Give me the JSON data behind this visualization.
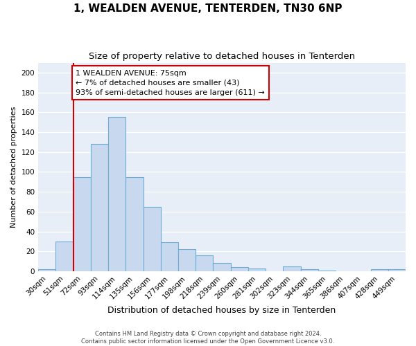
{
  "title": "1, WEALDEN AVENUE, TENTERDEN, TN30 6NP",
  "subtitle": "Size of property relative to detached houses in Tenterden",
  "xlabel": "Distribution of detached houses by size in Tenterden",
  "ylabel": "Number of detached properties",
  "footer_line1": "Contains HM Land Registry data © Crown copyright and database right 2024.",
  "footer_line2": "Contains public sector information licensed under the Open Government Licence v3.0.",
  "bin_labels": [
    "30sqm",
    "51sqm",
    "72sqm",
    "93sqm",
    "114sqm",
    "135sqm",
    "156sqm",
    "177sqm",
    "198sqm",
    "218sqm",
    "239sqm",
    "260sqm",
    "281sqm",
    "302sqm",
    "323sqm",
    "344sqm",
    "365sqm",
    "386sqm",
    "407sqm",
    "428sqm",
    "449sqm"
  ],
  "bar_values": [
    2,
    30,
    95,
    128,
    155,
    95,
    65,
    29,
    22,
    16,
    8,
    4,
    3,
    0,
    5,
    2,
    1,
    0,
    0,
    2,
    2
  ],
  "bar_color": "#c8d8ef",
  "bar_edge_color": "#6aaed6",
  "vline_color": "#cc0000",
  "vline_x_index": 1.5,
  "annotation_text": "1 WEALDEN AVENUE: 75sqm\n← 7% of detached houses are smaller (43)\n93% of semi-detached houses are larger (611) →",
  "annotation_box_facecolor": "#ffffff",
  "annotation_box_edgecolor": "#cc0000",
  "ylim": [
    0,
    210
  ],
  "yticks": [
    0,
    20,
    40,
    60,
    80,
    100,
    120,
    140,
    160,
    180,
    200
  ],
  "fig_bg_color": "#ffffff",
  "plot_bg_color": "#e8eef8",
  "grid_color": "#ffffff",
  "title_fontsize": 11,
  "subtitle_fontsize": 9.5,
  "xlabel_fontsize": 9,
  "ylabel_fontsize": 8,
  "tick_fontsize": 7.5,
  "footer_fontsize": 6,
  "annotation_fontsize": 8
}
